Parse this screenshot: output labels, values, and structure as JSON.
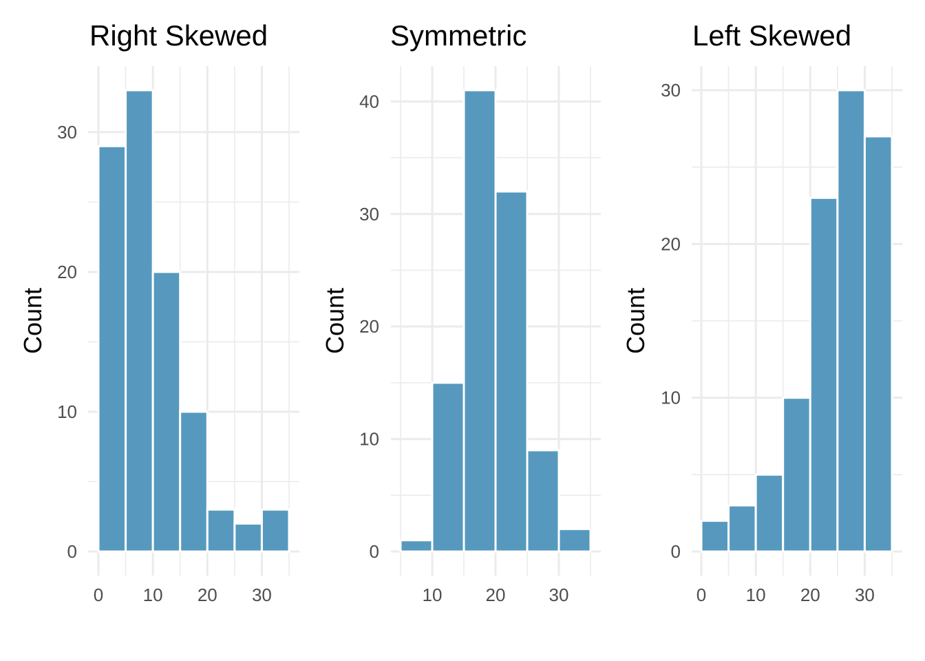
{
  "chart_data": [
    {
      "type": "bar",
      "title": "Right Skewed",
      "ylabel": "Count",
      "bin_edges": [
        0,
        5,
        10,
        15,
        20,
        25,
        30,
        35
      ],
      "values": [
        29,
        33,
        20,
        10,
        3,
        2,
        3
      ],
      "xlim": [
        0,
        35
      ],
      "ylim": [
        0,
        33
      ],
      "xticks": [
        0,
        10,
        20,
        30
      ],
      "yticks": [
        0,
        10,
        20,
        30
      ],
      "grid": true,
      "bar_color": "#5799be"
    },
    {
      "type": "bar",
      "title": "Symmetric",
      "ylabel": "Count",
      "bin_edges": [
        5,
        10,
        15,
        20,
        25,
        30,
        35
      ],
      "values": [
        1,
        15,
        41,
        32,
        9,
        2
      ],
      "xlim": [
        5,
        35
      ],
      "ylim": [
        0,
        41
      ],
      "xticks": [
        10,
        20,
        30
      ],
      "yticks": [
        0,
        10,
        20,
        30,
        40
      ],
      "grid": true,
      "bar_color": "#5799be"
    },
    {
      "type": "bar",
      "title": "Left Skewed",
      "ylabel": "Count",
      "bin_edges": [
        0,
        5,
        10,
        15,
        20,
        25,
        30,
        35
      ],
      "values": [
        2,
        3,
        5,
        10,
        23,
        30,
        27
      ],
      "xlim": [
        0,
        35
      ],
      "ylim": [
        0,
        30
      ],
      "xticks": [
        0,
        10,
        20,
        30
      ],
      "yticks": [
        0,
        10,
        20,
        30
      ],
      "grid": true,
      "bar_color": "#5799be"
    }
  ]
}
